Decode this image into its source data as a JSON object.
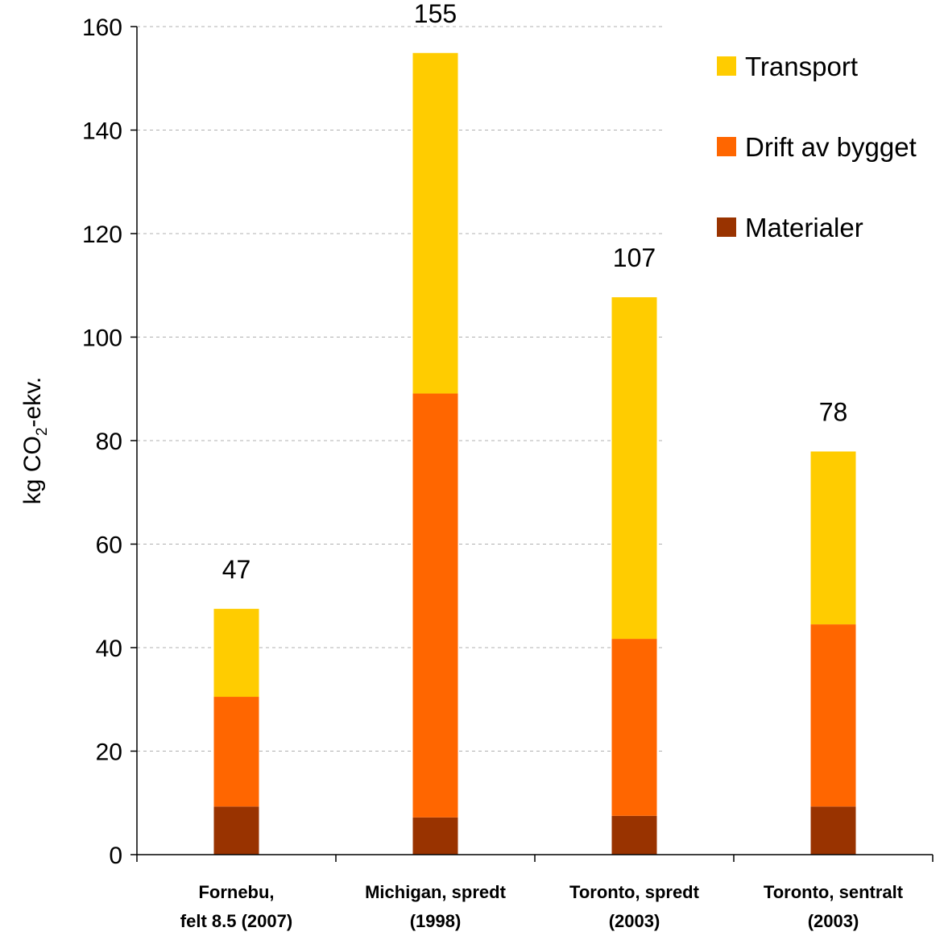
{
  "chart_data": {
    "type": "bar",
    "stacked": true,
    "categories": [
      [
        "Fornebu,",
        "felt 8.5 (2007)"
      ],
      [
        "Michigan, spredt",
        "(1998)"
      ],
      [
        "Toronto, spredt",
        "(2003)"
      ],
      [
        "Toronto, sentralt",
        "(2003)"
      ]
    ],
    "series": [
      {
        "name": "Materialer",
        "color": "#993300",
        "values": [
          9.3,
          7.2,
          7.5,
          9.3
        ]
      },
      {
        "name": "Drift av bygget",
        "color": "#FF6600",
        "values": [
          21.2,
          81.9,
          34.2,
          35.2
        ]
      },
      {
        "name": "Transport",
        "color": "#FFCC00",
        "values": [
          17.0,
          65.8,
          66.0,
          33.4
        ]
      }
    ],
    "totals": [
      "47",
      "155",
      "107",
      "78"
    ],
    "ylabel": {
      "prefix": "kg CO",
      "subscript": "2",
      "suffix": "-ekv."
    },
    "ylim": [
      0,
      160
    ],
    "yticks": [
      "0",
      "20",
      "40",
      "60",
      "80",
      "100",
      "120",
      "140",
      "160"
    ],
    "grid": true,
    "legend_position": "top-right",
    "legend_order": [
      "Transport",
      "Drift av bygget",
      "Materialer"
    ]
  }
}
